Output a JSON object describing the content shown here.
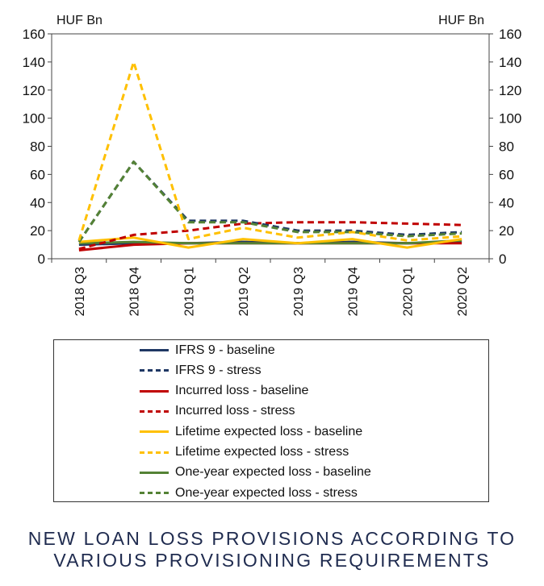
{
  "chart_data": {
    "type": "line",
    "title": "NEW LOAN LOSS PROVISIONS ACCORDING TO VARIOUS PROVISIONING REQUIREMENTS",
    "title_lines": [
      "NEW LOAN LOSS PROVISIONS ACCORDING TO",
      "VARIOUS PROVISIONING REQUIREMENTS"
    ],
    "ylabel_left": "HUF Bn",
    "ylabel_right": "HUF Bn",
    "ylim": [
      0,
      160
    ],
    "yticks": [
      "0",
      "20",
      "40",
      "60",
      "80",
      "100",
      "120",
      "140",
      "160"
    ],
    "grid": false,
    "legend_position": "bottom",
    "categories": [
      "2018 Q3",
      "2018 Q4",
      "2019 Q1",
      "2019 Q2",
      "2019 Q3",
      "2019 Q4",
      "2020 Q1",
      "2020 Q2"
    ],
    "series": [
      {
        "name": "IFRS 9 - baseline",
        "color": "#1f3864",
        "dash": "solid",
        "values": [
          10,
          11,
          11,
          12,
          11,
          12,
          11,
          12
        ]
      },
      {
        "name": "IFRS 9 - stress",
        "color": "#1f3864",
        "dash": "dashed",
        "values": [
          12,
          69,
          27,
          27,
          20,
          20,
          17,
          19
        ]
      },
      {
        "name": "Incurred loss - baseline",
        "color": "#c00000",
        "dash": "solid",
        "values": [
          6,
          10,
          11,
          11,
          11,
          11,
          11,
          11
        ]
      },
      {
        "name": "Incurred loss - stress",
        "color": "#c00000",
        "dash": "dashed",
        "values": [
          7,
          17,
          20,
          25,
          26,
          26,
          25,
          24
        ]
      },
      {
        "name": "Lifetime expected loss - baseline",
        "color": "#ffc000",
        "dash": "solid",
        "values": [
          12,
          15,
          8,
          14,
          11,
          14,
          8,
          14
        ]
      },
      {
        "name": "Lifetime expected loss - stress",
        "color": "#ffc000",
        "dash": "dashed",
        "values": [
          13,
          140,
          14,
          22,
          15,
          19,
          13,
          16
        ]
      },
      {
        "name": "One-year expected loss - baseline",
        "color": "#548235",
        "dash": "solid",
        "values": [
          11,
          12,
          11,
          11,
          11,
          11,
          11,
          13
        ]
      },
      {
        "name": "One-year expected loss - stress",
        "color": "#548235",
        "dash": "dashed",
        "values": [
          12,
          69,
          26,
          26,
          19,
          19,
          16,
          18
        ]
      }
    ]
  }
}
